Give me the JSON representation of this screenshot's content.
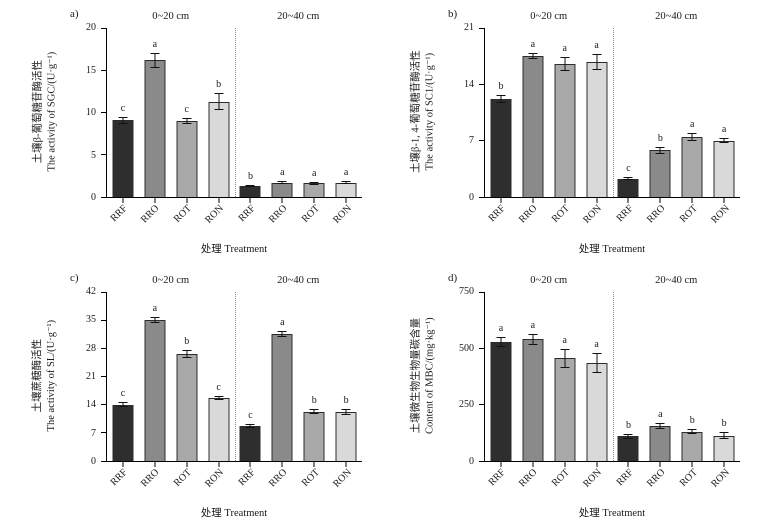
{
  "figure": {
    "x_axis_label": "处理 Treatment",
    "treatments": [
      "RRF",
      "RRO",
      "ROT",
      "RON"
    ],
    "depth_groups": [
      "0~20 cm",
      "20~40 cm"
    ],
    "bar_colors": {
      "RRF": "#2e2e2e",
      "RRO": "#8a8a8a",
      "ROT": "#a9a9a9",
      "RON": "#d9d9d9"
    }
  },
  "chart_data": [
    {
      "type": "bar",
      "panel_label": "a)",
      "ylabel_cn": "土壤β-葡萄糖苷酶活性",
      "ylabel_en": "The activity of SGC/(U·g⁻¹)",
      "ylim": [
        0,
        20
      ],
      "yticks": [
        0,
        5,
        10,
        15,
        20
      ],
      "categories": [
        "RRF",
        "RRO",
        "ROT",
        "RON"
      ],
      "groups": [
        {
          "label": "0~20 cm",
          "values": [
            9.1,
            16.2,
            9.0,
            11.3
          ],
          "errors": [
            0.4,
            0.9,
            0.3,
            1.0
          ],
          "sig_letters": [
            "c",
            "a",
            "c",
            "b"
          ]
        },
        {
          "label": "20~40 cm",
          "values": [
            1.3,
            1.7,
            1.6,
            1.7
          ],
          "errors": [
            0.15,
            0.15,
            0.15,
            0.2
          ],
          "sig_letters": [
            "b",
            "a",
            "a",
            "a"
          ]
        }
      ]
    },
    {
      "type": "bar",
      "panel_label": "b)",
      "ylabel_cn": "土壤β-1, 4-葡萄糖苷酶活性",
      "ylabel_en": "The activity of SC1/(U·g⁻¹)",
      "ylim": [
        0,
        21
      ],
      "yticks": [
        0,
        7,
        14,
        21
      ],
      "categories": [
        "RRF",
        "RRO",
        "ROT",
        "RON"
      ],
      "groups": [
        {
          "label": "0~20 cm",
          "values": [
            12.2,
            17.5,
            16.5,
            16.8
          ],
          "errors": [
            0.5,
            0.4,
            0.9,
            1.0
          ],
          "sig_letters": [
            "b",
            "a",
            "a",
            "a"
          ]
        },
        {
          "label": "20~40 cm",
          "values": [
            2.3,
            5.8,
            7.4,
            7.0
          ],
          "errors": [
            0.2,
            0.4,
            0.5,
            0.3
          ],
          "sig_letters": [
            "c",
            "b",
            "a",
            "a"
          ]
        }
      ]
    },
    {
      "type": "bar",
      "panel_label": "c)",
      "ylabel_cn": "土壤蔗糖酶活性",
      "ylabel_en": "The activity of SL/(U·g⁻¹)",
      "ylim": [
        0,
        42
      ],
      "yticks": [
        0,
        7,
        14,
        21,
        28,
        35,
        42
      ],
      "categories": [
        "RRF",
        "RRO",
        "ROT",
        "RON"
      ],
      "groups": [
        {
          "label": "0~20 cm",
          "values": [
            14.0,
            35.0,
            26.5,
            15.7
          ],
          "errors": [
            0.6,
            0.8,
            1.0,
            0.5
          ],
          "sig_letters": [
            "c",
            "a",
            "b",
            "c"
          ]
        },
        {
          "label": "20~40 cm",
          "values": [
            8.8,
            31.5,
            12.3,
            12.2
          ],
          "errors": [
            0.5,
            0.7,
            0.6,
            0.7
          ],
          "sig_letters": [
            "c",
            "a",
            "b",
            "b"
          ]
        }
      ]
    },
    {
      "type": "bar",
      "panel_label": "d)",
      "ylabel_cn": "土壤微生物生物量碳含量",
      "ylabel_en": "Content of MBC/(mg·kg⁻¹)",
      "ylim": [
        0,
        750
      ],
      "yticks": [
        0,
        250,
        500,
        750
      ],
      "categories": [
        "RRF",
        "RRO",
        "ROT",
        "RON"
      ],
      "groups": [
        {
          "label": "0~20 cm",
          "values": [
            530,
            540,
            455,
            435
          ],
          "errors": [
            22,
            25,
            42,
            45
          ],
          "sig_letters": [
            "a",
            "a",
            "a",
            "a"
          ]
        },
        {
          "label": "20~40 cm",
          "values": [
            110,
            155,
            130,
            112
          ],
          "errors": [
            12,
            15,
            12,
            15
          ],
          "sig_letters": [
            "b",
            "a",
            "b",
            "b"
          ]
        }
      ]
    }
  ]
}
